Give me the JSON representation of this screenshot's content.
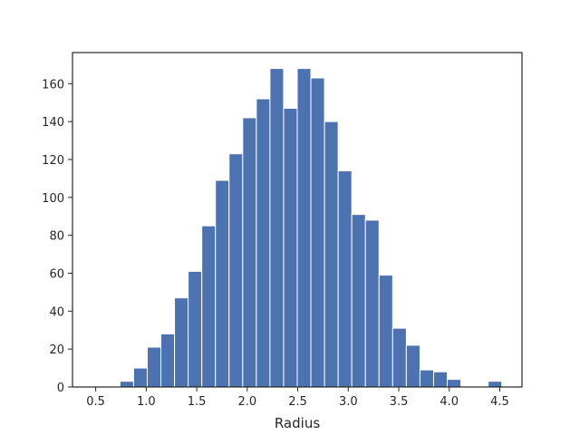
{
  "chart_data": {
    "type": "bar",
    "subtype": "histogram",
    "title": "",
    "xlabel": "Radius",
    "ylabel": "",
    "bar_color": "#4c72b0",
    "edge_color": "#ffffff",
    "grid": false,
    "xlim": [
      0.27,
      4.72
    ],
    "ylim": [
      0,
      176.4
    ],
    "x_ticks": [
      0.5,
      1.0,
      1.5,
      2.0,
      2.5,
      3.0,
      3.5,
      4.0,
      4.5
    ],
    "x_tick_labels": [
      "0.5",
      "1.0",
      "1.5",
      "2.0",
      "2.5",
      "3.0",
      "3.5",
      "4.0",
      "4.5"
    ],
    "y_ticks": [
      0,
      20,
      40,
      60,
      80,
      100,
      120,
      140,
      160
    ],
    "y_tick_labels": [
      "0",
      "20",
      "40",
      "60",
      "80",
      "100",
      "120",
      "140",
      "160"
    ],
    "bin_start": 0.47,
    "bin_width": 0.135,
    "values": [
      0,
      0,
      3,
      10,
      21,
      28,
      47,
      61,
      85,
      109,
      123,
      142,
      152,
      168,
      147,
      168,
      163,
      140,
      114,
      91,
      88,
      59,
      31,
      22,
      9,
      8,
      4,
      0,
      0,
      3
    ]
  }
}
